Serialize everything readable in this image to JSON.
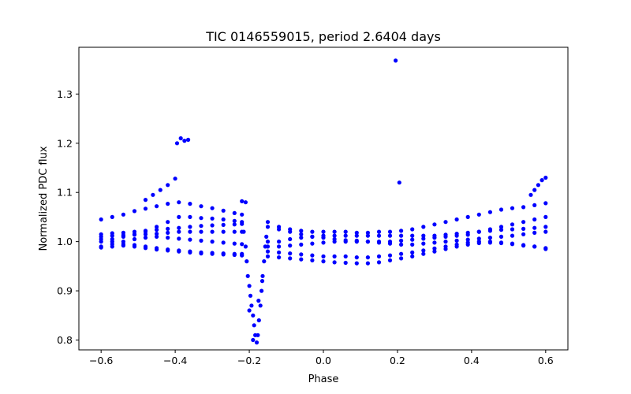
{
  "chart_data": {
    "type": "scatter",
    "title": "TIC 0146559015, period 2.6404 days",
    "xlabel": "Phase",
    "ylabel": "Normalized PDC flux",
    "xlim": [
      -0.66,
      0.66
    ],
    "ylim": [
      0.78,
      1.395
    ],
    "x_ticks": [
      {
        "value": -0.6,
        "label": "−0.6"
      },
      {
        "value": -0.4,
        "label": "−0.4"
      },
      {
        "value": -0.2,
        "label": "−0.2"
      },
      {
        "value": 0.0,
        "label": "0.0"
      },
      {
        "value": 0.2,
        "label": "0.2"
      },
      {
        "value": 0.4,
        "label": "0.4"
      },
      {
        "value": 0.6,
        "label": "0.6"
      }
    ],
    "y_ticks": [
      {
        "value": 0.8,
        "label": "0.8"
      },
      {
        "value": 0.9,
        "label": "0.9"
      },
      {
        "value": 1.0,
        "label": "1.0"
      },
      {
        "value": 1.1,
        "label": "1.1"
      },
      {
        "value": 1.2,
        "label": "1.2"
      },
      {
        "value": 1.3,
        "label": "1.3"
      }
    ],
    "grid": false,
    "marker_color": "#0000ff",
    "series": [
      {
        "points": [
          [
            -0.6,
            1.045
          ],
          [
            -0.57,
            1.05
          ],
          [
            -0.54,
            1.055
          ],
          [
            -0.51,
            1.062
          ],
          [
            -0.48,
            1.067
          ],
          [
            -0.45,
            1.072
          ],
          [
            -0.42,
            1.077
          ],
          [
            -0.39,
            1.08
          ],
          [
            -0.36,
            1.077
          ],
          [
            -0.33,
            1.072
          ],
          [
            -0.3,
            1.068
          ],
          [
            -0.27,
            1.063
          ],
          [
            -0.24,
            1.058
          ],
          [
            -0.22,
            1.055
          ],
          [
            -0.6,
            1.0
          ],
          [
            -0.57,
            1.005
          ],
          [
            -0.54,
            1.01
          ],
          [
            -0.51,
            1.015
          ],
          [
            -0.48,
            1.02
          ],
          [
            -0.45,
            1.03
          ],
          [
            -0.42,
            1.04
          ],
          [
            -0.39,
            1.05
          ],
          [
            -0.36,
            1.05
          ],
          [
            -0.33,
            1.048
          ],
          [
            -0.3,
            1.047
          ],
          [
            -0.27,
            1.045
          ],
          [
            -0.24,
            1.042
          ],
          [
            -0.22,
            1.04
          ],
          [
            -0.6,
            1.015
          ],
          [
            -0.57,
            1.017
          ],
          [
            -0.54,
            1.018
          ],
          [
            -0.51,
            1.02
          ],
          [
            -0.48,
            1.022
          ],
          [
            -0.45,
            1.024
          ],
          [
            -0.42,
            1.026
          ],
          [
            -0.39,
            1.028
          ],
          [
            -0.36,
            1.03
          ],
          [
            -0.33,
            1.032
          ],
          [
            -0.3,
            1.033
          ],
          [
            -0.27,
            1.034
          ],
          [
            -0.24,
            1.035
          ],
          [
            -0.22,
            1.036
          ],
          [
            -0.6,
            1.01
          ],
          [
            -0.57,
            1.012
          ],
          [
            -0.54,
            1.013
          ],
          [
            -0.51,
            1.014
          ],
          [
            -0.48,
            1.015
          ],
          [
            -0.45,
            1.016
          ],
          [
            -0.42,
            1.018
          ],
          [
            -0.39,
            1.02
          ],
          [
            -0.36,
            1.02
          ],
          [
            -0.33,
            1.02
          ],
          [
            -0.3,
            1.02
          ],
          [
            -0.27,
            1.02
          ],
          [
            -0.24,
            1.02
          ],
          [
            -0.22,
            1.02
          ],
          [
            -0.6,
            0.99
          ],
          [
            -0.57,
            0.995
          ],
          [
            -0.54,
            1.0
          ],
          [
            -0.51,
            1.005
          ],
          [
            -0.48,
            1.008
          ],
          [
            -0.45,
            1.01
          ],
          [
            -0.42,
            1.008
          ],
          [
            -0.39,
            1.006
          ],
          [
            -0.36,
            1.004
          ],
          [
            -0.33,
            1.002
          ],
          [
            -0.3,
            1.0
          ],
          [
            -0.27,
            0.998
          ],
          [
            -0.24,
            0.996
          ],
          [
            -0.22,
            0.995
          ],
          [
            -0.6,
            1.005
          ],
          [
            -0.57,
            1.0
          ],
          [
            -0.54,
            0.995
          ],
          [
            -0.51,
            0.99
          ],
          [
            -0.48,
            0.987
          ],
          [
            -0.45,
            0.984
          ],
          [
            -0.42,
            0.982
          ],
          [
            -0.39,
            0.98
          ],
          [
            -0.36,
            0.978
          ],
          [
            -0.33,
            0.976
          ],
          [
            -0.3,
            0.975
          ],
          [
            -0.27,
            0.974
          ],
          [
            -0.24,
            0.973
          ],
          [
            -0.22,
            0.972
          ],
          [
            -0.6,
            0.988
          ],
          [
            -0.57,
            0.99
          ],
          [
            -0.54,
            0.992
          ],
          [
            -0.51,
            0.993
          ],
          [
            -0.48,
            0.99
          ],
          [
            -0.45,
            0.987
          ],
          [
            -0.42,
            0.984
          ],
          [
            -0.39,
            0.982
          ],
          [
            -0.36,
            0.98
          ],
          [
            -0.33,
            0.978
          ],
          [
            -0.3,
            0.977
          ],
          [
            -0.27,
            0.976
          ],
          [
            -0.24,
            0.975
          ],
          [
            -0.22,
            0.975
          ],
          [
            -0.48,
            1.085
          ],
          [
            -0.46,
            1.095
          ],
          [
            -0.44,
            1.105
          ],
          [
            -0.42,
            1.115
          ],
          [
            -0.4,
            1.128
          ],
          [
            -0.395,
            1.2
          ],
          [
            -0.385,
            1.21
          ],
          [
            -0.375,
            1.205
          ],
          [
            -0.365,
            1.207
          ],
          [
            -0.22,
            1.082
          ],
          [
            -0.21,
            1.08
          ],
          [
            -0.215,
            1.02
          ],
          [
            -0.21,
            0.99
          ],
          [
            -0.207,
            0.96
          ],
          [
            -0.204,
            0.93
          ],
          [
            -0.2,
            0.91
          ],
          [
            -0.197,
            0.89
          ],
          [
            -0.194,
            0.87
          ],
          [
            -0.19,
            0.85
          ],
          [
            -0.187,
            0.83
          ],
          [
            -0.184,
            0.81
          ],
          [
            -0.18,
            0.795
          ],
          [
            -0.177,
            0.81
          ],
          [
            -0.174,
            0.84
          ],
          [
            -0.17,
            0.87
          ],
          [
            -0.167,
            0.9
          ],
          [
            -0.164,
            0.93
          ],
          [
            -0.16,
            0.96
          ],
          [
            -0.157,
            0.99
          ],
          [
            -0.154,
            1.01
          ],
          [
            -0.2,
            0.86
          ],
          [
            -0.19,
            0.8
          ],
          [
            -0.175,
            0.88
          ],
          [
            -0.165,
            0.92
          ],
          [
            -0.15,
            1.04
          ],
          [
            -0.12,
            1.03
          ],
          [
            -0.09,
            1.025
          ],
          [
            -0.06,
            1.022
          ],
          [
            -0.03,
            1.02
          ],
          [
            0.0,
            1.02
          ],
          [
            0.03,
            1.02
          ],
          [
            0.06,
            1.02
          ],
          [
            0.09,
            1.018
          ],
          [
            0.12,
            1.018
          ],
          [
            0.15,
            1.02
          ],
          [
            0.18,
            1.02
          ],
          [
            0.21,
            1.022
          ],
          [
            0.24,
            1.025
          ],
          [
            0.27,
            1.03
          ],
          [
            0.3,
            1.035
          ],
          [
            0.33,
            1.04
          ],
          [
            0.36,
            1.045
          ],
          [
            0.39,
            1.05
          ],
          [
            0.42,
            1.055
          ],
          [
            0.45,
            1.06
          ],
          [
            0.48,
            1.065
          ],
          [
            0.51,
            1.068
          ],
          [
            0.54,
            1.07
          ],
          [
            0.57,
            1.074
          ],
          [
            0.6,
            1.078
          ],
          [
            -0.15,
            1.03
          ],
          [
            -0.12,
            1.025
          ],
          [
            -0.09,
            1.02
          ],
          [
            -0.06,
            1.015
          ],
          [
            -0.03,
            1.01
          ],
          [
            0.0,
            1.008
          ],
          [
            0.03,
            1.005
          ],
          [
            0.06,
            1.003
          ],
          [
            0.09,
            1.002
          ],
          [
            0.12,
            1.0
          ],
          [
            0.15,
            1.0
          ],
          [
            0.18,
            1.0
          ],
          [
            0.21,
            1.002
          ],
          [
            0.24,
            1.004
          ],
          [
            0.27,
            1.006
          ],
          [
            0.3,
            1.008
          ],
          [
            0.33,
            1.01
          ],
          [
            0.36,
            1.012
          ],
          [
            0.39,
            1.014
          ],
          [
            0.42,
            1.02
          ],
          [
            0.45,
            1.025
          ],
          [
            0.48,
            1.03
          ],
          [
            0.51,
            1.035
          ],
          [
            0.54,
            1.04
          ],
          [
            0.57,
            1.045
          ],
          [
            0.6,
            1.05
          ],
          [
            -0.15,
            1.0
          ],
          [
            -0.12,
            1.0
          ],
          [
            -0.09,
            1.005
          ],
          [
            -0.06,
            1.008
          ],
          [
            -0.03,
            1.01
          ],
          [
            0.0,
            1.012
          ],
          [
            0.03,
            1.012
          ],
          [
            0.06,
            1.012
          ],
          [
            0.09,
            1.012
          ],
          [
            0.12,
            1.012
          ],
          [
            0.15,
            1.012
          ],
          [
            0.18,
            1.012
          ],
          [
            0.21,
            1.012
          ],
          [
            0.24,
            1.012
          ],
          [
            0.27,
            1.012
          ],
          [
            0.3,
            1.012
          ],
          [
            0.33,
            1.014
          ],
          [
            0.36,
            1.016
          ],
          [
            0.39,
            1.018
          ],
          [
            0.42,
            1.02
          ],
          [
            0.45,
            1.022
          ],
          [
            0.48,
            1.024
          ],
          [
            0.51,
            1.025
          ],
          [
            0.54,
            1.026
          ],
          [
            0.57,
            1.028
          ],
          [
            0.6,
            1.03
          ],
          [
            -0.15,
            0.99
          ],
          [
            -0.12,
            0.99
          ],
          [
            -0.09,
            0.992
          ],
          [
            -0.06,
            0.994
          ],
          [
            -0.03,
            0.996
          ],
          [
            0.0,
            0.998
          ],
          [
            0.03,
            1.0
          ],
          [
            0.06,
            1.0
          ],
          [
            0.09,
            1.0
          ],
          [
            0.12,
            1.0
          ],
          [
            0.15,
            0.998
          ],
          [
            0.18,
            0.996
          ],
          [
            0.21,
            0.994
          ],
          [
            0.24,
            0.994
          ],
          [
            0.27,
            0.996
          ],
          [
            0.3,
            0.998
          ],
          [
            0.33,
            1.0
          ],
          [
            0.36,
            1.002
          ],
          [
            0.39,
            1.004
          ],
          [
            0.42,
            1.006
          ],
          [
            0.45,
            1.008
          ],
          [
            0.48,
            1.01
          ],
          [
            0.51,
            1.012
          ],
          [
            0.54,
            1.015
          ],
          [
            0.57,
            1.018
          ],
          [
            0.6,
            1.02
          ],
          [
            -0.15,
            0.98
          ],
          [
            -0.12,
            0.978
          ],
          [
            -0.09,
            0.976
          ],
          [
            -0.06,
            0.974
          ],
          [
            -0.03,
            0.972
          ],
          [
            0.0,
            0.97
          ],
          [
            0.03,
            0.97
          ],
          [
            0.06,
            0.97
          ],
          [
            0.09,
            0.968
          ],
          [
            0.12,
            0.968
          ],
          [
            0.15,
            0.97
          ],
          [
            0.18,
            0.972
          ],
          [
            0.21,
            0.975
          ],
          [
            0.24,
            0.978
          ],
          [
            0.27,
            0.982
          ],
          [
            0.3,
            0.986
          ],
          [
            0.33,
            0.99
          ],
          [
            0.36,
            0.994
          ],
          [
            0.39,
            0.998
          ],
          [
            0.42,
            1.0
          ],
          [
            0.45,
            1.0
          ],
          [
            0.48,
            0.998
          ],
          [
            0.51,
            0.996
          ],
          [
            0.54,
            0.993
          ],
          [
            0.57,
            0.99
          ],
          [
            0.6,
            0.987
          ],
          [
            -0.15,
            0.97
          ],
          [
            -0.12,
            0.968
          ],
          [
            -0.09,
            0.966
          ],
          [
            -0.06,
            0.964
          ],
          [
            -0.03,
            0.962
          ],
          [
            0.0,
            0.96
          ],
          [
            0.03,
            0.958
          ],
          [
            0.06,
            0.957
          ],
          [
            0.09,
            0.956
          ],
          [
            0.12,
            0.956
          ],
          [
            0.15,
            0.958
          ],
          [
            0.18,
            0.962
          ],
          [
            0.21,
            0.966
          ],
          [
            0.24,
            0.97
          ],
          [
            0.27,
            0.975
          ],
          [
            0.3,
            0.98
          ],
          [
            0.33,
            0.985
          ],
          [
            0.36,
            0.99
          ],
          [
            0.39,
            0.994
          ],
          [
            0.42,
            0.997
          ],
          [
            0.45,
            0.998
          ],
          [
            0.48,
            0.997
          ],
          [
            0.51,
            0.995
          ],
          [
            0.54,
            0.992
          ],
          [
            0.57,
            0.99
          ],
          [
            0.6,
            0.985
          ],
          [
            0.195,
            1.368
          ],
          [
            0.205,
            1.12
          ],
          [
            0.56,
            1.095
          ],
          [
            0.57,
            1.105
          ],
          [
            0.58,
            1.115
          ],
          [
            0.59,
            1.125
          ],
          [
            0.6,
            1.13
          ]
        ]
      }
    ]
  }
}
